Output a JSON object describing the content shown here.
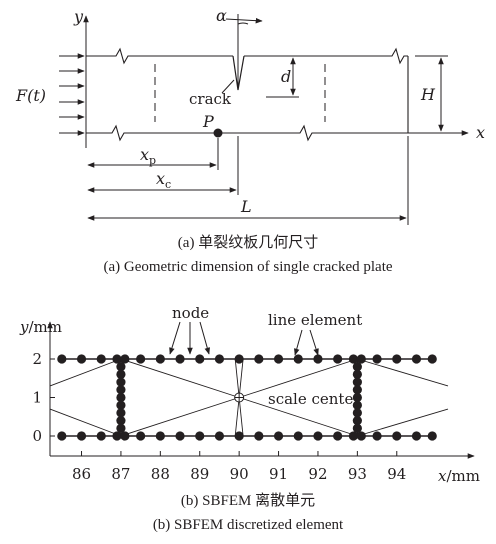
{
  "part_a": {
    "axis_y": "y",
    "axis_x": "x",
    "load": "F(t)",
    "angle": "α",
    "depth": "d",
    "height": "H",
    "crack": "crack",
    "point": "P",
    "xp": {
      "base": "x",
      "sub": "p"
    },
    "xc": {
      "base": "x",
      "sub": "c"
    },
    "length": "L",
    "caption_cn": "(a) 单裂纹板几何尺寸",
    "caption_en": "(a) Geometric dimension of single cracked plate"
  },
  "part_b": {
    "ylabel": "y/mm",
    "xlabel": "x/mm",
    "node_label": "node",
    "line_label": "line element",
    "scale_label": "scale center",
    "y_ticks": [
      "0",
      "1",
      "2"
    ],
    "x_ticks": [
      "86",
      "87",
      "88",
      "89",
      "90",
      "91",
      "92",
      "93",
      "94"
    ],
    "caption_cn": "(b) SBFEM 离散单元",
    "caption_en": "(b) SBFEM discretized element"
  },
  "chart_data": {
    "type": "scatter",
    "xlabel": "x/mm",
    "ylabel": "y/mm",
    "xlim": [
      85.2,
      95.3
    ],
    "ylim": [
      0,
      2
    ],
    "scale_center": [
      90,
      1
    ],
    "series": [
      {
        "name": "",
        "x": [
          85.5,
          86.0,
          86.5,
          86.9,
          87.1,
          87.5,
          88.0,
          88.5,
          89.0,
          89.5,
          90.0,
          90.5,
          91.0,
          91.5,
          92.0,
          92.5,
          92.9,
          93.1,
          93.5,
          94.0,
          94.5,
          94.9
        ],
        "y": [
          2,
          2,
          2,
          2,
          2,
          2,
          2,
          2,
          2,
          2,
          2,
          2,
          2,
          2,
          2,
          2,
          2,
          2,
          2,
          2,
          2,
          2
        ]
      },
      {
        "name": "",
        "x": [
          85.5,
          86.0,
          86.5,
          86.9,
          87.1,
          87.5,
          88.0,
          88.5,
          89.0,
          89.5,
          90.0,
          90.5,
          91.0,
          91.5,
          92.0,
          92.5,
          92.9,
          93.1,
          93.5,
          94.0,
          94.5,
          94.9
        ],
        "y": [
          0,
          0,
          0,
          0,
          0,
          0,
          0,
          0,
          0,
          0,
          0,
          0,
          0,
          0,
          0,
          0,
          0,
          0,
          0,
          0,
          0,
          0
        ]
      },
      {
        "name": "",
        "x": [
          87,
          87,
          87,
          87,
          87,
          87,
          87,
          87,
          87,
          93,
          93,
          93,
          93,
          93,
          93,
          93,
          93,
          93
        ],
        "y": [
          1.8,
          1.6,
          1.4,
          1.2,
          1.0,
          0.8,
          0.6,
          0.4,
          0.2,
          1.8,
          1.6,
          1.4,
          1.2,
          1.0,
          0.8,
          0.6,
          0.4,
          0.2
        ]
      }
    ],
    "line_elements": [
      [
        [
          85.2,
          1.3
        ],
        [
          87,
          2
        ]
      ],
      [
        [
          85.2,
          0.7
        ],
        [
          87,
          0
        ]
      ],
      [
        [
          87,
          2
        ],
        [
          90,
          1
        ]
      ],
      [
        [
          87,
          0
        ],
        [
          90,
          1
        ]
      ],
      [
        [
          90,
          1
        ],
        [
          93,
          2
        ]
      ],
      [
        [
          90,
          1
        ],
        [
          93,
          0
        ]
      ],
      [
        [
          93,
          2
        ],
        [
          95.3,
          1.3
        ]
      ],
      [
        [
          93,
          0
        ],
        [
          95.3,
          0.7
        ]
      ],
      [
        [
          90,
          1
        ],
        [
          89.9,
          2
        ]
      ],
      [
        [
          90,
          1
        ],
        [
          90.1,
          2
        ]
      ],
      [
        [
          90,
          1
        ],
        [
          89.9,
          0
        ]
      ],
      [
        [
          90,
          1
        ],
        [
          90.1,
          0
        ]
      ]
    ]
  }
}
